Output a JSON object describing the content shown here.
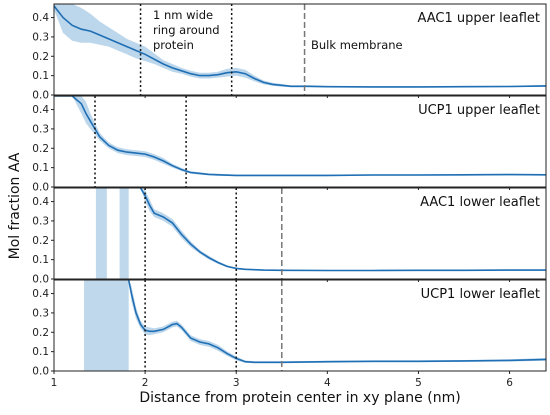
{
  "chart_data": {
    "type": "line",
    "xlabel": "Distance from protein center in xy plane (nm)",
    "ylabel": "Mol fraction AA",
    "xlim": [
      1,
      6.4
    ],
    "x_ticks": [
      "1",
      "2",
      "3",
      "4",
      "5",
      "6"
    ],
    "y_ticks": [
      "0.0",
      "0.1",
      "0.2",
      "0.3",
      "0.4"
    ],
    "ylim": [
      0,
      0.47
    ],
    "line_color": "#1f6fb5",
    "band_color": "#b8d4ea",
    "annotations": {
      "ring_label": [
        "1 nm wide",
        "ring around",
        "protein"
      ],
      "bulk_label": "Bulk membrane"
    },
    "panels": [
      {
        "title": "AAC1 upper leaflet",
        "ring_lines": [
          1.95,
          2.95
        ],
        "bulk_line": 3.75,
        "x": [
          1.0,
          1.1,
          1.2,
          1.3,
          1.4,
          1.5,
          1.6,
          1.7,
          1.8,
          1.9,
          2.0,
          2.1,
          2.2,
          2.3,
          2.4,
          2.5,
          2.6,
          2.7,
          2.8,
          2.9,
          3.0,
          3.1,
          3.2,
          3.3,
          3.4,
          3.5,
          3.6,
          3.7,
          3.8,
          4.0,
          4.5,
          5.0,
          5.5,
          6.0,
          6.4
        ],
        "y": [
          0.46,
          0.4,
          0.36,
          0.34,
          0.33,
          0.31,
          0.29,
          0.27,
          0.25,
          0.23,
          0.21,
          0.185,
          0.16,
          0.14,
          0.125,
          0.11,
          0.1,
          0.1,
          0.105,
          0.115,
          0.12,
          0.11,
          0.085,
          0.065,
          0.055,
          0.05,
          0.045,
          0.045,
          0.045,
          0.043,
          0.042,
          0.042,
          0.043,
          0.044,
          0.047
        ],
        "lower": [
          0.44,
          0.32,
          0.28,
          0.27,
          0.27,
          0.26,
          0.25,
          0.23,
          0.21,
          0.19,
          0.175,
          0.16,
          0.14,
          0.12,
          0.11,
          0.095,
          0.085,
          0.085,
          0.09,
          0.095,
          0.1,
          0.09,
          0.07,
          0.055,
          0.047,
          0.043,
          0.04,
          0.04,
          0.04,
          0.039,
          0.038,
          0.038,
          0.039,
          0.04,
          0.042
        ],
        "upper": [
          0.47,
          0.47,
          0.47,
          0.45,
          0.42,
          0.38,
          0.35,
          0.32,
          0.29,
          0.27,
          0.25,
          0.215,
          0.18,
          0.16,
          0.14,
          0.125,
          0.115,
          0.115,
          0.12,
          0.135,
          0.14,
          0.13,
          0.1,
          0.075,
          0.063,
          0.057,
          0.05,
          0.05,
          0.05,
          0.047,
          0.046,
          0.046,
          0.047,
          0.048,
          0.052
        ]
      },
      {
        "title": "UCP1 upper leaflet",
        "ring_lines": [
          1.45,
          2.45
        ],
        "bulk_line": null,
        "x": [
          1.0,
          1.2,
          1.3,
          1.35,
          1.4,
          1.45,
          1.5,
          1.6,
          1.7,
          1.8,
          1.9,
          2.0,
          2.1,
          2.2,
          2.3,
          2.4,
          2.5,
          2.6,
          2.7,
          2.8,
          3.0,
          3.5,
          4.0,
          4.5,
          5.0,
          5.5,
          6.0,
          6.4
        ],
        "y": [
          0.47,
          0.47,
          0.43,
          0.38,
          0.34,
          0.3,
          0.26,
          0.215,
          0.19,
          0.18,
          0.175,
          0.17,
          0.155,
          0.135,
          0.11,
          0.09,
          0.075,
          0.07,
          0.065,
          0.063,
          0.06,
          0.06,
          0.06,
          0.062,
          0.062,
          0.063,
          0.064,
          0.063
        ],
        "lower": [
          0.47,
          0.47,
          0.38,
          0.33,
          0.3,
          0.27,
          0.24,
          0.2,
          0.175,
          0.165,
          0.16,
          0.155,
          0.14,
          0.12,
          0.1,
          0.082,
          0.068,
          0.064,
          0.06,
          0.058,
          0.056,
          0.056,
          0.056,
          0.058,
          0.058,
          0.059,
          0.06,
          0.059
        ],
        "upper": [
          0.47,
          0.47,
          0.47,
          0.44,
          0.38,
          0.33,
          0.28,
          0.23,
          0.205,
          0.195,
          0.19,
          0.185,
          0.17,
          0.15,
          0.12,
          0.098,
          0.082,
          0.076,
          0.07,
          0.068,
          0.064,
          0.064,
          0.064,
          0.066,
          0.066,
          0.067,
          0.068,
          0.067
        ]
      },
      {
        "title": "AAC1 lower leaflet",
        "ring_lines": [
          2.0,
          3.0
        ],
        "bulk_line": 3.5,
        "x": [
          1.95,
          2.0,
          2.05,
          2.1,
          2.2,
          2.3,
          2.4,
          2.5,
          2.6,
          2.7,
          2.8,
          2.9,
          3.0,
          3.1,
          3.2,
          3.3,
          3.5,
          4.0,
          4.5,
          5.0,
          5.5,
          6.0,
          6.4
        ],
        "y": [
          0.47,
          0.43,
          0.38,
          0.34,
          0.32,
          0.29,
          0.23,
          0.18,
          0.14,
          0.11,
          0.085,
          0.065,
          0.055,
          0.05,
          0.048,
          0.046,
          0.045,
          0.044,
          0.044,
          0.045,
          0.045,
          0.046,
          0.046
        ],
        "lower": [
          0.47,
          0.4,
          0.35,
          0.32,
          0.3,
          0.27,
          0.21,
          0.165,
          0.13,
          0.1,
          0.078,
          0.06,
          0.051,
          0.047,
          0.045,
          0.043,
          0.042,
          0.041,
          0.041,
          0.042,
          0.042,
          0.043,
          0.043
        ],
        "upper": [
          0.47,
          0.46,
          0.41,
          0.36,
          0.34,
          0.31,
          0.25,
          0.195,
          0.15,
          0.12,
          0.092,
          0.07,
          0.059,
          0.053,
          0.051,
          0.049,
          0.048,
          0.047,
          0.047,
          0.048,
          0.048,
          0.049,
          0.049
        ],
        "artifact_bands": [
          [
            1.46,
            1.58
          ],
          [
            1.72,
            1.82
          ]
        ]
      },
      {
        "title": "UCP1 lower leaflet",
        "ring_lines": [
          2.0,
          3.0
        ],
        "bulk_line": 3.5,
        "x": [
          1.82,
          1.85,
          1.9,
          1.95,
          2.0,
          2.05,
          2.1,
          2.2,
          2.3,
          2.35,
          2.4,
          2.5,
          2.6,
          2.7,
          2.8,
          2.9,
          3.0,
          3.1,
          3.2,
          3.5,
          4.0,
          4.5,
          5.0,
          5.5,
          6.0,
          6.4
        ],
        "y": [
          0.47,
          0.4,
          0.3,
          0.24,
          0.21,
          0.205,
          0.205,
          0.215,
          0.24,
          0.245,
          0.225,
          0.17,
          0.15,
          0.14,
          0.12,
          0.09,
          0.065,
          0.048,
          0.045,
          0.045,
          0.048,
          0.05,
          0.05,
          0.052,
          0.055,
          0.06
        ],
        "lower": [
          0.47,
          0.36,
          0.27,
          0.22,
          0.19,
          0.185,
          0.19,
          0.2,
          0.225,
          0.23,
          0.21,
          0.155,
          0.135,
          0.125,
          0.105,
          0.078,
          0.055,
          0.042,
          0.04,
          0.04,
          0.043,
          0.045,
          0.045,
          0.047,
          0.049,
          0.053
        ],
        "upper": [
          0.47,
          0.44,
          0.33,
          0.26,
          0.23,
          0.225,
          0.22,
          0.23,
          0.255,
          0.26,
          0.24,
          0.185,
          0.165,
          0.155,
          0.135,
          0.102,
          0.075,
          0.054,
          0.05,
          0.05,
          0.053,
          0.055,
          0.055,
          0.057,
          0.061,
          0.067
        ],
        "artifact_bands": [
          [
            1.33,
            1.82
          ]
        ]
      }
    ]
  }
}
